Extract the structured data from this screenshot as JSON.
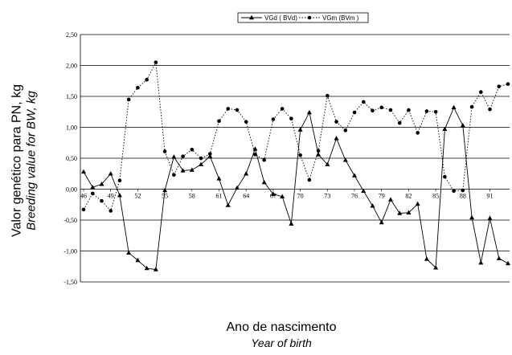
{
  "chart_data": {
    "type": "line",
    "ylabel": "Valor genético para PN, kg",
    "ylabel_sub": "Breeding value for BW, kg",
    "xlabel": "Ano de nascimento",
    "xlabel_sub": "Year of birth",
    "ylim": [
      -1.5,
      2.5
    ],
    "y_ticks": [
      "2,50",
      "2,00",
      "1,50",
      "1,00",
      "0,50",
      "0,00",
      "-0,50",
      "-1,00",
      "-1,50"
    ],
    "x_ticks": [
      "46",
      "49",
      "52",
      "55",
      "58",
      "61",
      "64",
      "67",
      "70",
      "73",
      "76",
      "79",
      "82",
      "85",
      "88",
      "91"
    ],
    "xlim": [
      46,
      93
    ],
    "grid": "horizontal",
    "legend_position": "top",
    "series": [
      {
        "name": "VGd ( BVd)",
        "color": "#000000",
        "marker": "triangle",
        "dash": "solid",
        "x": [
          46,
          47,
          48,
          49,
          50,
          51,
          52,
          53,
          54,
          55,
          56,
          57,
          58,
          59,
          60,
          61,
          62,
          63,
          64,
          65,
          66,
          67,
          68,
          69,
          70,
          71,
          72,
          73,
          74,
          75,
          76,
          77,
          78,
          79,
          80,
          81,
          82,
          83,
          84,
          85,
          86,
          87,
          88,
          89,
          90,
          91,
          92,
          93
        ],
        "values": [
          0.28,
          0.03,
          0.08,
          0.25,
          -0.1,
          -1.03,
          -1.15,
          -1.28,
          -1.3,
          -0.02,
          0.52,
          0.3,
          0.31,
          0.4,
          0.53,
          0.17,
          -0.26,
          0.02,
          0.25,
          0.65,
          0.11,
          -0.08,
          -0.12,
          -0.56,
          0.96,
          1.24,
          0.56,
          0.4,
          0.82,
          0.47,
          0.22,
          -0.03,
          -0.27,
          -0.54,
          -0.17,
          -0.39,
          -0.38,
          -0.24,
          -1.13,
          -1.27,
          0.97,
          1.32,
          1.03,
          -0.46,
          -1.19,
          -0.47,
          -1.12,
          -1.2
        ]
      },
      {
        "name": "VGm (BVm )",
        "color": "#000000",
        "marker": "circle",
        "dash": "dotted",
        "x": [
          46,
          47,
          48,
          49,
          50,
          51,
          52,
          53,
          54,
          55,
          56,
          57,
          58,
          59,
          60,
          61,
          62,
          63,
          64,
          65,
          66,
          67,
          68,
          69,
          70,
          71,
          72,
          73,
          74,
          75,
          76,
          77,
          78,
          79,
          80,
          81,
          82,
          83,
          84,
          85,
          86,
          87,
          88,
          89,
          90,
          91,
          92,
          93
        ],
        "values": [
          -0.33,
          -0.07,
          -0.19,
          -0.35,
          0.14,
          1.45,
          1.64,
          1.77,
          2.05,
          0.61,
          0.23,
          0.53,
          0.64,
          0.5,
          0.57,
          1.1,
          1.3,
          1.28,
          1.09,
          0.56,
          0.47,
          1.13,
          1.3,
          1.14,
          0.55,
          0.15,
          0.62,
          1.51,
          1.09,
          0.95,
          1.24,
          1.41,
          1.27,
          1.32,
          1.28,
          1.07,
          1.28,
          0.91,
          1.26,
          1.25,
          0.2,
          -0.03,
          -0.02,
          1.33,
          1.57,
          1.29,
          1.66,
          1.7
        ]
      }
    ]
  }
}
